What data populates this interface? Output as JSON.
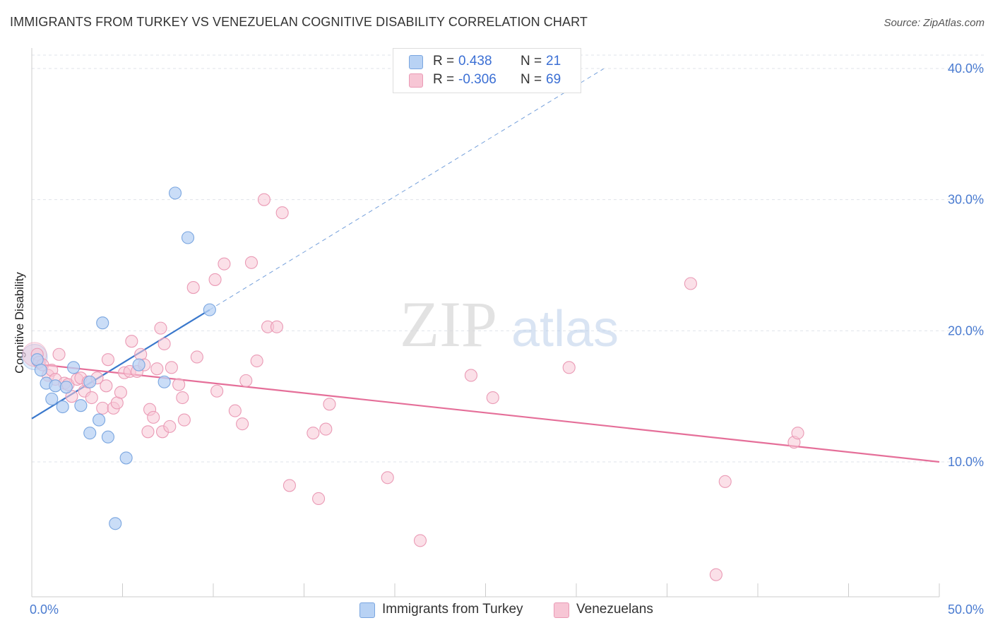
{
  "header": {
    "title": "IMMIGRANTS FROM TURKEY VS VENEZUELAN COGNITIVE DISABILITY CORRELATION CHART",
    "source": "Source: ZipAtlas.com"
  },
  "watermark": {
    "zip": "ZIP",
    "atlas": "atlas"
  },
  "legend": {
    "rows": [
      {
        "r_label": "R =",
        "r_value": "0.438",
        "n_label": "N =",
        "n_value": "21"
      },
      {
        "r_label": "R =",
        "r_value": "-0.306",
        "n_label": "N =",
        "n_value": "69"
      }
    ]
  },
  "bottom_legend": {
    "items": [
      {
        "label": "Immigrants from Turkey"
      },
      {
        "label": "Venezuelans"
      }
    ]
  },
  "colors": {
    "turkey_fill": "#b8d2f4",
    "turkey_stroke": "#7aa6e0",
    "turkey_line": "#3a78cc",
    "venezuela_fill": "#f7c6d5",
    "venezuela_stroke": "#ea9ab5",
    "venezuela_line": "#e56f99",
    "tick_text": "#4a7bd0",
    "grid": "#dfe3ea"
  },
  "chart_data": {
    "type": "scatter",
    "title": "IMMIGRANTS FROM TURKEY VS VENEZUELAN COGNITIVE DISABILITY CORRELATION CHART",
    "xlabel": "",
    "ylabel": "Cognitive Disability",
    "xlim": [
      0,
      50
    ],
    "ylim": [
      0,
      40
    ],
    "x_tick_labels": [
      "0.0%",
      "50.0%"
    ],
    "y_ticks": [
      10,
      20,
      30,
      40
    ],
    "y_tick_labels": [
      "10.0%",
      "20.0%",
      "30.0%",
      "40.0%"
    ],
    "grid": true,
    "legend_position": "top-center",
    "series": [
      {
        "name": "Immigrants from Turkey",
        "r": 0.438,
        "n": 21,
        "points": [
          [
            0.3,
            17.8
          ],
          [
            0.5,
            17.0
          ],
          [
            0.8,
            16.0
          ],
          [
            1.1,
            14.8
          ],
          [
            1.3,
            15.8
          ],
          [
            1.7,
            14.2
          ],
          [
            1.9,
            15.7
          ],
          [
            2.3,
            17.2
          ],
          [
            2.7,
            14.3
          ],
          [
            3.2,
            16.1
          ],
          [
            3.2,
            12.2
          ],
          [
            3.7,
            13.2
          ],
          [
            3.9,
            20.6
          ],
          [
            4.2,
            11.9
          ],
          [
            4.6,
            5.3
          ],
          [
            5.2,
            10.3
          ],
          [
            5.9,
            17.4
          ],
          [
            7.3,
            16.1
          ],
          [
            7.9,
            30.5
          ],
          [
            8.6,
            27.1
          ],
          [
            9.8,
            21.6
          ]
        ],
        "trend": {
          "x0": 0,
          "y0": 13.3,
          "x1": 9.8,
          "y1": 21.6,
          "dashed_to_x": 31.5
        }
      },
      {
        "name": "Venezuelans",
        "r": -0.306,
        "n": 69,
        "points": [
          [
            0.3,
            18.2
          ],
          [
            0.4,
            17.6
          ],
          [
            0.6,
            17.4
          ],
          [
            0.9,
            16.6
          ],
          [
            1.1,
            17.0
          ],
          [
            1.3,
            16.3
          ],
          [
            1.5,
            18.2
          ],
          [
            1.8,
            16.0
          ],
          [
            2.0,
            15.9
          ],
          [
            2.2,
            15.0
          ],
          [
            2.5,
            16.3
          ],
          [
            2.7,
            16.4
          ],
          [
            2.9,
            15.4
          ],
          [
            3.1,
            16.1
          ],
          [
            3.3,
            14.9
          ],
          [
            3.6,
            16.4
          ],
          [
            3.9,
            14.1
          ],
          [
            4.1,
            15.8
          ],
          [
            4.2,
            17.8
          ],
          [
            4.5,
            14.1
          ],
          [
            4.7,
            14.5
          ],
          [
            4.9,
            15.3
          ],
          [
            5.1,
            16.8
          ],
          [
            5.4,
            16.9
          ],
          [
            5.5,
            19.2
          ],
          [
            5.8,
            16.9
          ],
          [
            6.0,
            18.2
          ],
          [
            6.2,
            17.4
          ],
          [
            6.4,
            12.3
          ],
          [
            6.5,
            14.0
          ],
          [
            6.7,
            13.4
          ],
          [
            6.9,
            17.1
          ],
          [
            7.1,
            20.2
          ],
          [
            7.2,
            12.3
          ],
          [
            7.3,
            19.0
          ],
          [
            7.6,
            12.7
          ],
          [
            7.7,
            17.2
          ],
          [
            8.1,
            15.9
          ],
          [
            8.3,
            14.9
          ],
          [
            8.4,
            13.2
          ],
          [
            8.9,
            23.3
          ],
          [
            9.1,
            18.0
          ],
          [
            10.1,
            23.9
          ],
          [
            10.2,
            15.4
          ],
          [
            10.6,
            25.1
          ],
          [
            11.2,
            13.9
          ],
          [
            11.6,
            12.9
          ],
          [
            11.8,
            16.2
          ],
          [
            12.1,
            25.2
          ],
          [
            12.4,
            17.7
          ],
          [
            12.8,
            30.0
          ],
          [
            13.0,
            20.3
          ],
          [
            13.5,
            20.3
          ],
          [
            13.8,
            29.0
          ],
          [
            14.2,
            8.2
          ],
          [
            15.5,
            12.2
          ],
          [
            15.8,
            7.2
          ],
          [
            16.2,
            12.5
          ],
          [
            16.4,
            14.4
          ],
          [
            19.6,
            8.8
          ],
          [
            21.4,
            4.0
          ],
          [
            25.4,
            14.9
          ],
          [
            36.3,
            23.6
          ],
          [
            37.7,
            1.4
          ],
          [
            38.2,
            8.5
          ],
          [
            42.0,
            11.5
          ],
          [
            42.2,
            12.2
          ],
          [
            29.6,
            17.2
          ],
          [
            24.2,
            16.6
          ]
        ],
        "trend": {
          "x0": 0,
          "y0": 17.5,
          "x1": 50,
          "y1": 10.0
        }
      }
    ]
  }
}
